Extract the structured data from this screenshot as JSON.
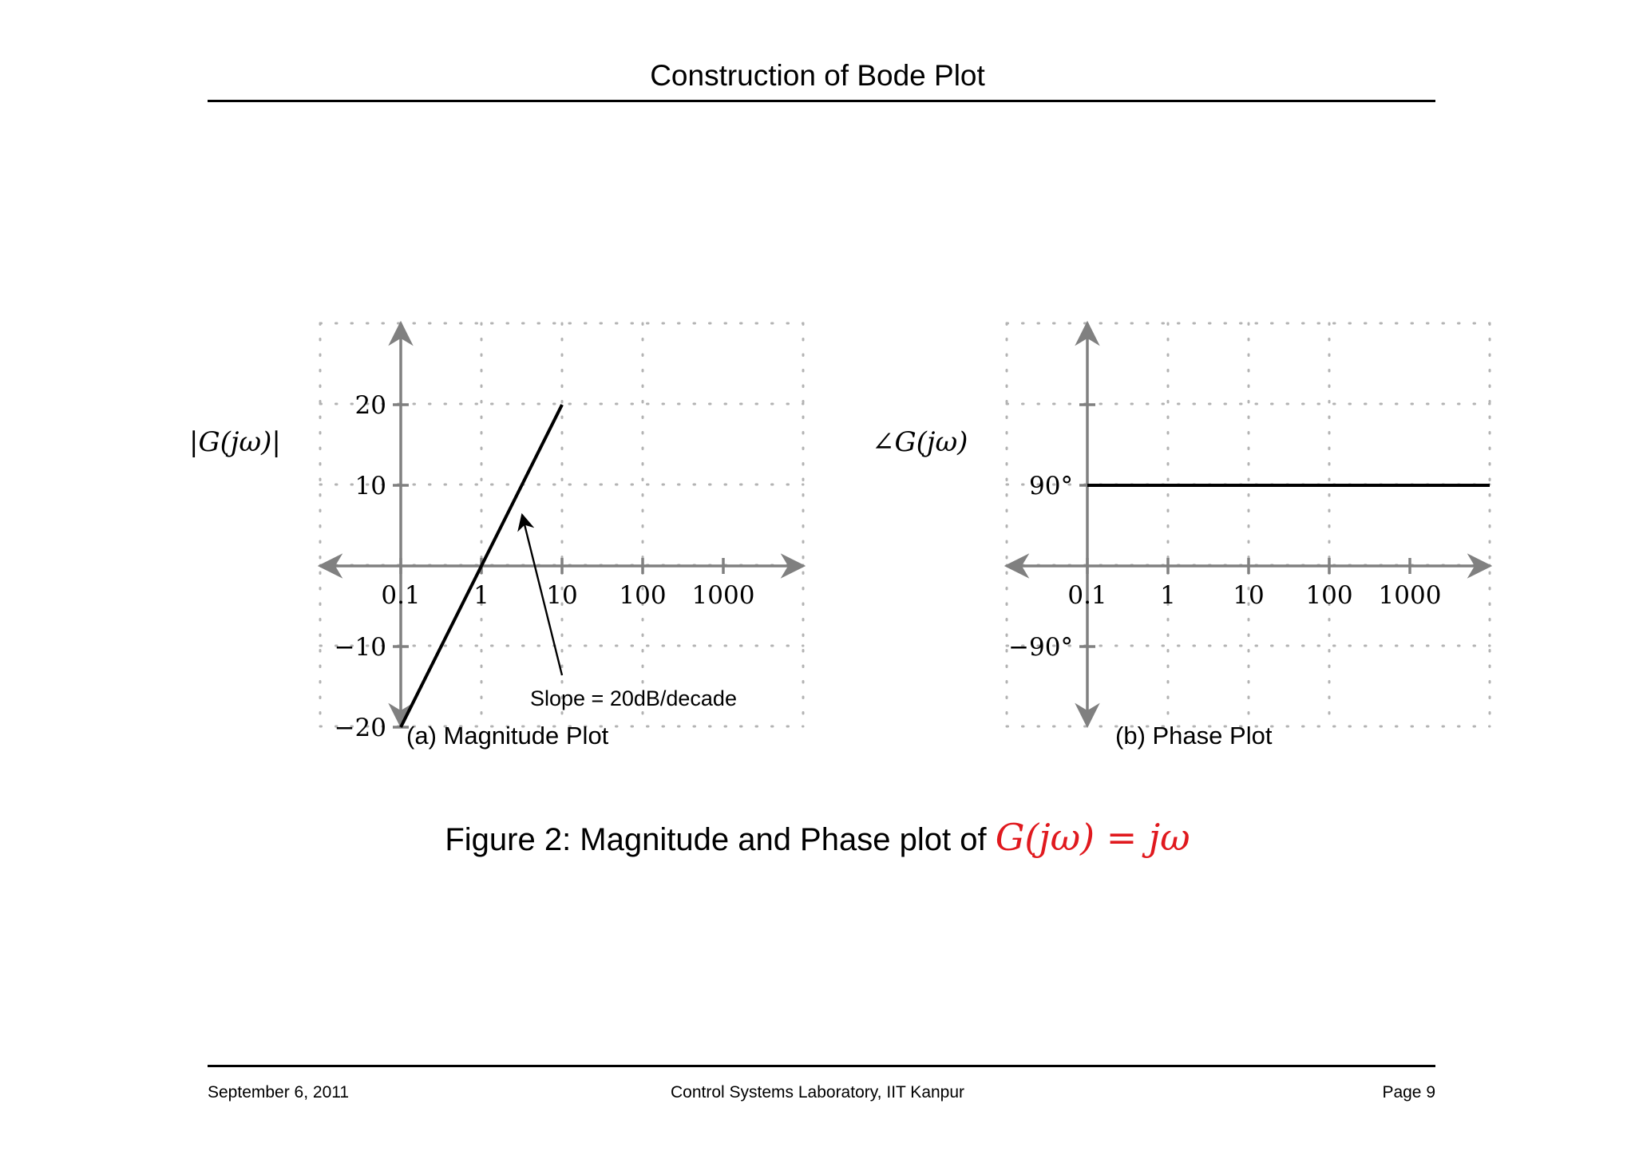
{
  "header": {
    "title": "Construction of Bode Plot"
  },
  "footer": {
    "date": "September 6, 2011",
    "lab": "Control Systems Laboratory, IIT Kanpur",
    "page": "Page 9"
  },
  "caption": {
    "prefix": "Figure 2: Magnitude and Phase plot of",
    "equation": "G(jω) = jω",
    "equation_color": "#e0191e"
  },
  "chart_data": [
    {
      "type": "line",
      "subtitle": "(a) Magnitude Plot",
      "ylabel": "|G(jω)|",
      "x_scale": "log",
      "x_ticks": [
        0.1,
        1,
        10,
        100,
        1000
      ],
      "x_tick_labels": [
        "0.1",
        "1",
        "10",
        "100",
        "1000"
      ],
      "y_ticks": [
        20,
        10,
        -10,
        -20
      ],
      "y_tick_labels": [
        "20",
        "10",
        "−10",
        "−20"
      ],
      "ylim": [
        -20,
        30
      ],
      "grid": true,
      "series": [
        {
          "x": [
            0.1,
            10
          ],
          "y": [
            -20,
            20
          ]
        }
      ],
      "annotation": {
        "text": "Slope = 20dB/decade"
      }
    },
    {
      "type": "line",
      "subtitle": "(b) Phase Plot",
      "ylabel": "∠G(jω)",
      "x_scale": "log",
      "x_ticks": [
        0.1,
        1,
        10,
        100,
        1000
      ],
      "x_tick_labels": [
        "0.1",
        "1",
        "10",
        "100",
        "1000"
      ],
      "y_ticks": [
        90,
        -90
      ],
      "y_tick_labels": [
        "90°",
        "−90°"
      ],
      "grid": true,
      "series": [
        {
          "x": [
            0.1,
            10000
          ],
          "y": [
            90,
            90
          ]
        }
      ]
    }
  ],
  "colors": {
    "axis": "#808080",
    "grid": "#b3b3b3",
    "line": "#000000"
  }
}
